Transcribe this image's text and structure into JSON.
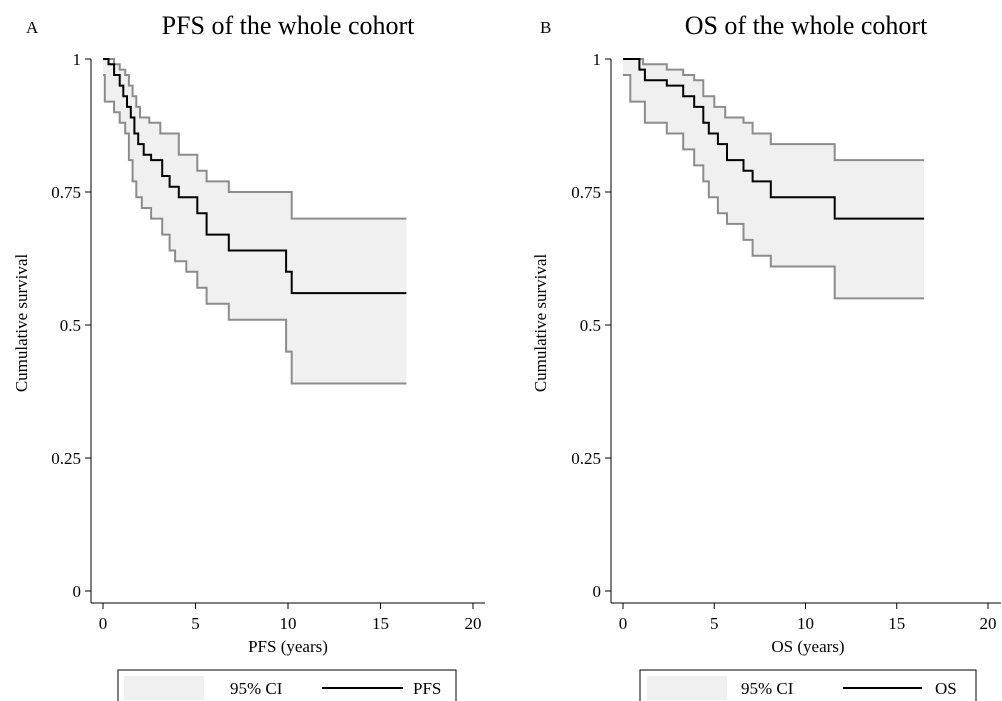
{
  "chart_data": [
    {
      "type": "line",
      "panel": "A",
      "title": "PFS of the whole cohort",
      "xlabel": "PFS (years)",
      "ylabel": "Cumulative survival",
      "xlim": [
        0,
        20
      ],
      "ylim": [
        0,
        1
      ],
      "xticks": [
        "0",
        "5",
        "10",
        "15",
        "20"
      ],
      "yticks": [
        "0",
        "0.25",
        "0.5",
        "0.75",
        "1"
      ],
      "grid": false,
      "legend_position": "bottom",
      "legend": [
        {
          "label": "95% CI",
          "kind": "band"
        },
        {
          "label": "PFS",
          "kind": "line"
        }
      ],
      "colors": {
        "band_fill": "#f0f0f0",
        "band_edge": "#8c8c8c",
        "estimate": "#000000"
      },
      "series": [
        {
          "name": "PFS",
          "role": "estimate",
          "x": [
            0,
            0.3,
            0.6,
            0.9,
            1.1,
            1.3,
            1.5,
            1.7,
            1.9,
            2.2,
            2.6,
            3.2,
            3.6,
            4.1,
            5.1,
            5.6,
            6.8,
            9.9,
            10.2,
            16.4
          ],
          "y": [
            1.0,
            0.99,
            0.97,
            0.95,
            0.93,
            0.91,
            0.89,
            0.86,
            0.84,
            0.82,
            0.81,
            0.78,
            0.76,
            0.74,
            0.71,
            0.67,
            0.64,
            0.6,
            0.56,
            0.56
          ]
        },
        {
          "name": "95% CI upper",
          "role": "upper",
          "x": [
            0,
            0.6,
            0.9,
            1.2,
            1.4,
            1.6,
            1.8,
            2.0,
            2.5,
            3.1,
            4.1,
            5.1,
            5.6,
            6.8,
            10.2,
            16.4
          ],
          "y": [
            1.0,
            0.99,
            0.98,
            0.97,
            0.95,
            0.93,
            0.91,
            0.89,
            0.88,
            0.86,
            0.82,
            0.79,
            0.77,
            0.75,
            0.7,
            0.7
          ]
        },
        {
          "name": "95% CI lower",
          "role": "lower",
          "x": [
            0,
            0.1,
            0.6,
            0.9,
            1.2,
            1.4,
            1.6,
            1.8,
            2.1,
            2.6,
            3.2,
            3.6,
            3.9,
            4.5,
            5.1,
            5.6,
            6.8,
            9.9,
            10.2,
            16.4
          ],
          "y": [
            0.97,
            0.92,
            0.9,
            0.88,
            0.86,
            0.81,
            0.77,
            0.74,
            0.72,
            0.7,
            0.67,
            0.64,
            0.62,
            0.6,
            0.57,
            0.54,
            0.51,
            0.45,
            0.39,
            0.39
          ]
        }
      ]
    },
    {
      "type": "line",
      "panel": "B",
      "title": "OS of the whole cohort",
      "xlabel": "OS (years)",
      "ylabel": "Cumulative survival",
      "xlim": [
        0,
        20
      ],
      "ylim": [
        0,
        1
      ],
      "xticks": [
        "0",
        "5",
        "10",
        "15",
        "20"
      ],
      "yticks": [
        "0",
        "0.25",
        "0.5",
        "0.75",
        "1"
      ],
      "grid": false,
      "legend_position": "bottom",
      "legend": [
        {
          "label": "95% CI",
          "kind": "band"
        },
        {
          "label": "OS",
          "kind": "line"
        }
      ],
      "colors": {
        "band_fill": "#f0f0f0",
        "band_edge": "#8c8c8c",
        "estimate": "#000000"
      },
      "series": [
        {
          "name": "OS",
          "role": "estimate",
          "x": [
            0,
            0.9,
            1.2,
            2.4,
            3.3,
            3.9,
            4.4,
            4.7,
            5.2,
            5.7,
            6.6,
            7.1,
            8.1,
            11.6,
            16.5
          ],
          "y": [
            1.0,
            0.98,
            0.96,
            0.95,
            0.93,
            0.91,
            0.88,
            0.86,
            0.84,
            0.81,
            0.79,
            0.77,
            0.74,
            0.7,
            0.7
          ]
        },
        {
          "name": "95% CI upper",
          "role": "upper",
          "x": [
            0,
            1.1,
            2.4,
            3.3,
            3.9,
            4.4,
            5.0,
            5.6,
            6.6,
            7.1,
            8.1,
            11.6,
            16.5
          ],
          "y": [
            1.0,
            0.99,
            0.98,
            0.97,
            0.96,
            0.93,
            0.91,
            0.89,
            0.88,
            0.86,
            0.84,
            0.81,
            0.81
          ]
        },
        {
          "name": "95% CI lower",
          "role": "lower",
          "x": [
            0,
            0.4,
            1.2,
            2.4,
            3.3,
            3.9,
            4.4,
            4.7,
            5.2,
            5.7,
            6.6,
            7.1,
            8.1,
            11.6,
            16.5
          ],
          "y": [
            0.97,
            0.92,
            0.88,
            0.86,
            0.83,
            0.8,
            0.77,
            0.74,
            0.71,
            0.69,
            0.66,
            0.63,
            0.61,
            0.55,
            0.55
          ]
        }
      ]
    }
  ]
}
